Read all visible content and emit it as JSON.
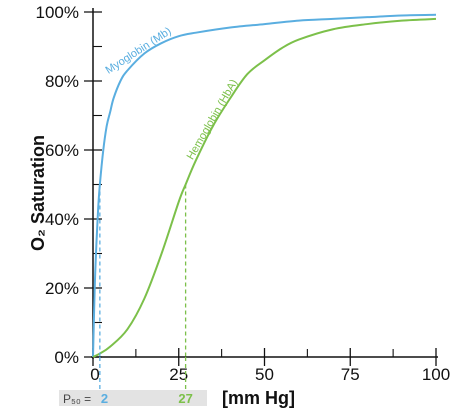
{
  "chart_data": {
    "type": "line",
    "ylabel": "O₂ Saturation",
    "xlabel": "[mm Hg]",
    "xlim": [
      0,
      100
    ],
    "ylim": [
      0,
      100
    ],
    "x_ticks": [
      0,
      25,
      50,
      75,
      100
    ],
    "x_tick_labels": [
      "0",
      "25",
      "50",
      "75",
      "100"
    ],
    "y_ticks": [
      0,
      20,
      40,
      60,
      80,
      100
    ],
    "y_tick_labels": [
      "0%",
      "20%",
      "40%",
      "60%",
      "80%",
      "100%"
    ],
    "series": [
      {
        "name": "Myoglobin (Mb)",
        "color": "#5aaee0",
        "p50": 2,
        "x": [
          0,
          0.5,
          1,
          1.5,
          2,
          3,
          4,
          5,
          6,
          8,
          10,
          15,
          20,
          25,
          30,
          40,
          50,
          60,
          70,
          80,
          90,
          100
        ],
        "y": [
          0,
          20,
          33,
          43,
          50,
          60,
          67,
          71,
          75,
          80,
          83,
          88,
          91,
          93,
          94,
          95.5,
          96.5,
          97.5,
          98,
          98.5,
          99,
          99.2
        ]
      },
      {
        "name": "Hemoglobin (HbA)",
        "color": "#7cc04a",
        "p50": 27,
        "x": [
          0,
          2,
          5,
          10,
          15,
          20,
          25,
          27,
          30,
          35,
          40,
          45,
          50,
          55,
          60,
          70,
          80,
          90,
          100
        ],
        "y": [
          0,
          1,
          3,
          8,
          17,
          30,
          45,
          50,
          57,
          67,
          75,
          82,
          86,
          89.5,
          92,
          95,
          96.5,
          97.5,
          98
        ]
      }
    ],
    "p50_label": "P₅₀ =",
    "p50_values": [
      "2",
      "27"
    ]
  }
}
